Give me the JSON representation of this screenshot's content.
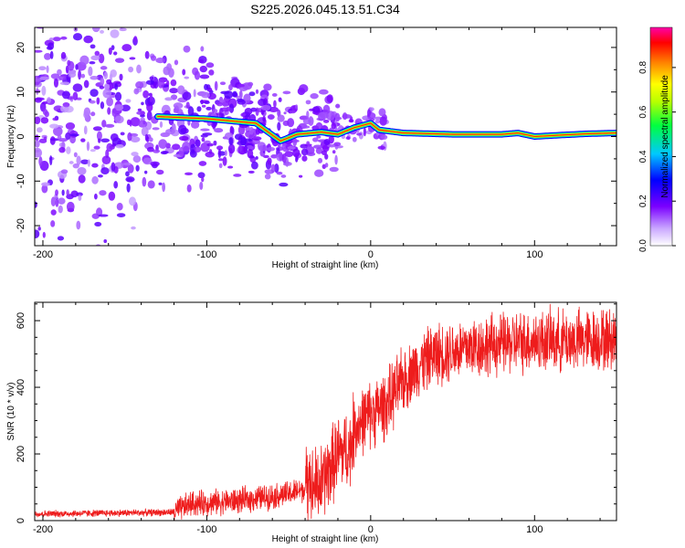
{
  "title": "S225.2026.045.13.51.C34",
  "colors": {
    "line": "#ee1c1c",
    "ridge": "#ee0000",
    "axis": "#000000",
    "background": "#ffffff"
  },
  "chart_data": [
    {
      "type": "heatmap",
      "name": "spectrogram",
      "xlabel": "Height of straight line (km)",
      "ylabel": "Frequency (Hz)",
      "xlim": [
        -205,
        150
      ],
      "ylim": [
        -24.5,
        24.5
      ],
      "xticks": [
        -200,
        -100,
        0,
        100
      ],
      "yticks": [
        -20,
        -10,
        0,
        10,
        20
      ],
      "colorbar": {
        "label": "Normalized spectral amplitude",
        "range": [
          0.0,
          0.98
        ],
        "ticks": [
          0.0,
          0.2,
          0.4,
          0.6,
          0.8
        ],
        "tick_labels": [
          "0.0",
          "0.2",
          "0.4",
          "0.6",
          "0.8"
        ],
        "colormap": "rainbow (white-violet-blue-cyan-green-yellow-orange-red-magenta)"
      },
      "ridge": {
        "description": "narrow-band signal near 1 Hz",
        "points": [
          [
            -130,
            4.5
          ],
          [
            -100,
            4
          ],
          [
            -70,
            3
          ],
          [
            -55,
            -1
          ],
          [
            -45,
            0.5
          ],
          [
            -30,
            1
          ],
          [
            -20,
            0.5
          ],
          [
            -10,
            2
          ],
          [
            0,
            3
          ],
          [
            5,
            1.5
          ],
          [
            20,
            0.8
          ],
          [
            50,
            0.5
          ],
          [
            80,
            0.5
          ],
          [
            90,
            0.8
          ],
          [
            100,
            0
          ],
          [
            130,
            0.6
          ],
          [
            150,
            0.8
          ]
        ],
        "peak_amplitude": 0.95
      }
    },
    {
      "type": "line",
      "name": "snr",
      "xlabel": "Height of straight line (km)",
      "ylabel": "SNR (10 * v/v)",
      "xlim": [
        -205,
        150
      ],
      "ylim": [
        0,
        655
      ],
      "xticks": [
        -200,
        -100,
        0,
        100
      ],
      "yticks": [
        0,
        200,
        400,
        600
      ],
      "trend": [
        [
          -205,
          20
        ],
        [
          -120,
          25
        ],
        [
          -110,
          50
        ],
        [
          -80,
          60
        ],
        [
          -50,
          80
        ],
        [
          -30,
          110
        ],
        [
          -20,
          200
        ],
        [
          -12,
          220
        ],
        [
          -10,
          280
        ],
        [
          0,
          320
        ],
        [
          10,
          350
        ],
        [
          20,
          420
        ],
        [
          30,
          470
        ],
        [
          40,
          500
        ],
        [
          60,
          520
        ],
        [
          80,
          530
        ],
        [
          100,
          540
        ],
        [
          120,
          540
        ],
        [
          150,
          545
        ]
      ]
    }
  ]
}
